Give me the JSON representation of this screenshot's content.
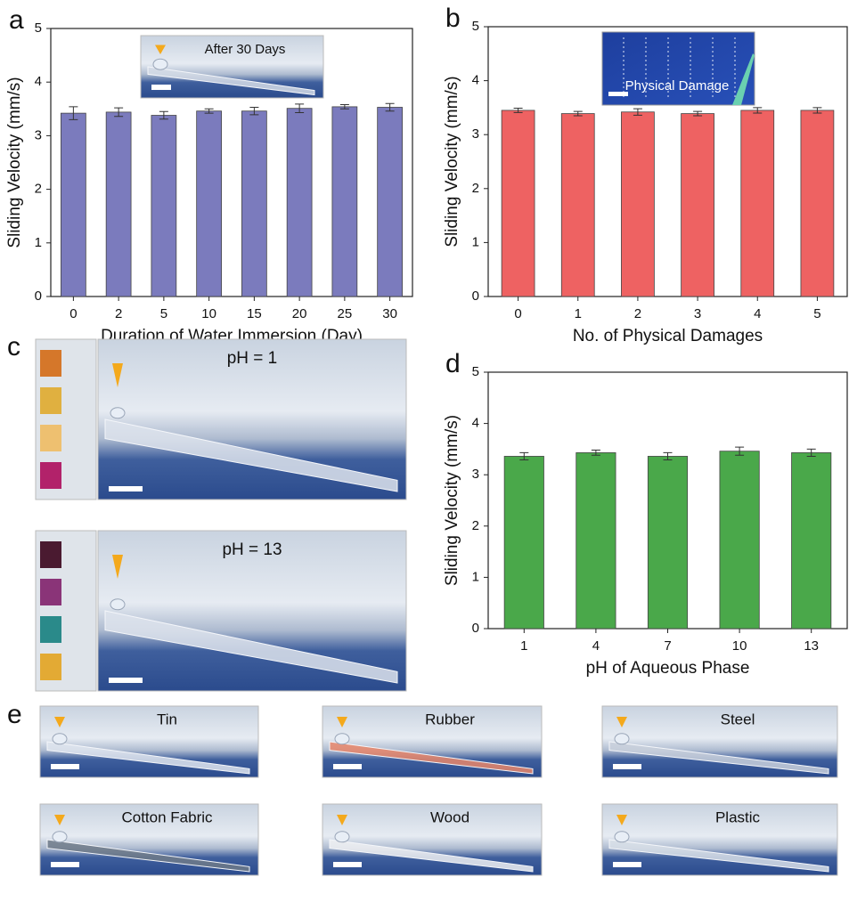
{
  "chart_data": [
    {
      "type": "bar",
      "panel": "a",
      "annotation": "After 30 Days",
      "xlabel": "Duration of Water Immersion (Day)",
      "ylabel": "Sliding Velocity (mm/s)",
      "categories": [
        "0",
        "2",
        "5",
        "10",
        "15",
        "20",
        "25",
        "30"
      ],
      "values": [
        3.42,
        3.44,
        3.38,
        3.46,
        3.46,
        3.51,
        3.54,
        3.53
      ],
      "errors": [
        0.12,
        0.08,
        0.07,
        0.04,
        0.07,
        0.08,
        0.04,
        0.07
      ],
      "color": "#7b7bbd",
      "ylim": [
        0,
        5
      ],
      "yticks": [
        0,
        1,
        2,
        3,
        4,
        5
      ]
    },
    {
      "type": "bar",
      "panel": "b",
      "annotation": "Physical Damage",
      "xlabel": "No. of Physical Damages",
      "ylabel": "Sliding Velocity (mm/s)",
      "categories": [
        "0",
        "1",
        "2",
        "3",
        "4",
        "5"
      ],
      "values": [
        3.45,
        3.39,
        3.42,
        3.39,
        3.45,
        3.45
      ],
      "errors": [
        0.04,
        0.04,
        0.06,
        0.04,
        0.05,
        0.05
      ],
      "color": "#ee6262",
      "ylim": [
        0,
        5
      ],
      "yticks": [
        0,
        1,
        2,
        3,
        4,
        5
      ]
    },
    {
      "type": "bar",
      "panel": "d",
      "xlabel": "pH of Aqueous Phase",
      "ylabel": "Sliding Velocity (mm/s)",
      "categories": [
        "1",
        "4",
        "7",
        "10",
        "13"
      ],
      "values": [
        3.36,
        3.43,
        3.36,
        3.46,
        3.43
      ],
      "errors": [
        0.07,
        0.05,
        0.07,
        0.08,
        0.07
      ],
      "color": "#4aa84a",
      "ylim": [
        0,
        5
      ],
      "yticks": [
        0,
        1,
        2,
        3,
        4,
        5
      ]
    }
  ],
  "panel_c": {
    "letter": "c",
    "photos": [
      "pH = 1",
      "pH = 13"
    ]
  },
  "panel_e": {
    "letter": "e",
    "photos": [
      "Tin",
      "Rubber",
      "Steel",
      "Cotton Fabric",
      "Wood",
      "Plastic"
    ]
  }
}
